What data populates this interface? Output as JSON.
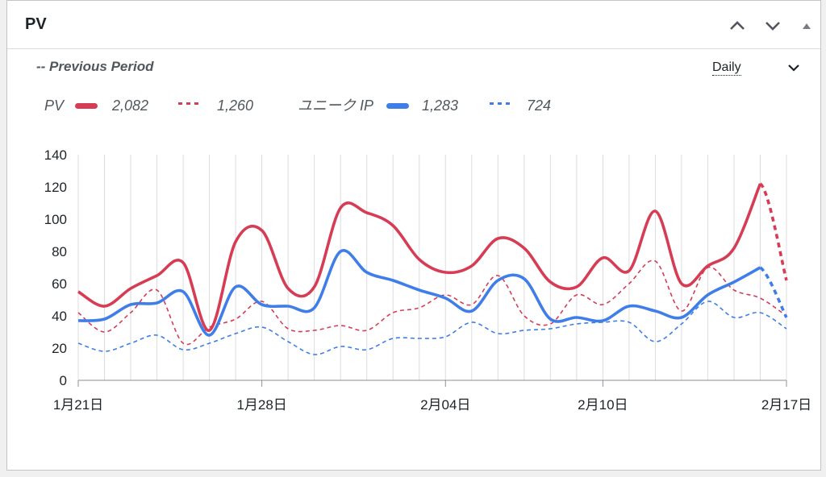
{
  "widget": {
    "title": "PV",
    "previous_period_label": "-- Previous Period",
    "range_label": "Daily"
  },
  "icons": {
    "move_up": "chevron-up-icon",
    "move_down": "chevron-down-icon",
    "toggle": "triangle-up-icon",
    "range_dropdown": "chevron-down-icon"
  },
  "legend": {
    "pv_label": "PV",
    "pv_current": "2,082",
    "pv_previous": "1,260",
    "uip_label": "ユニーク IP",
    "uip_current": "1,283",
    "uip_previous": "724"
  },
  "colors": {
    "pv": "#d63d55",
    "uip": "#3f7ee8",
    "grid": "#dcdcde",
    "axis_text": "#1d2327"
  },
  "chart_data": {
    "type": "line",
    "x": [
      "1月21日",
      "1月22日",
      "1月23日",
      "1月24日",
      "1月25日",
      "1月26日",
      "1月27日",
      "1月28日",
      "1月29日",
      "1月30日",
      "1月31日",
      "2月01日",
      "2月02日",
      "2月03日",
      "2月04日",
      "2月05日",
      "2月06日",
      "2月07日",
      "2月08日",
      "2月09日",
      "2月10日",
      "2月11日",
      "2月12日",
      "2月13日",
      "2月14日",
      "2月15日",
      "2月16日",
      "2月17日"
    ],
    "x_tick_labels": [
      "1月21日",
      "1月28日",
      "2月04日",
      "2月10日",
      "2月17日"
    ],
    "x_tick_indices": [
      0,
      7,
      14,
      20,
      27
    ],
    "ylim": [
      0,
      140
    ],
    "yticks": [
      0,
      20,
      40,
      60,
      80,
      100,
      120,
      140
    ],
    "grid": true,
    "series": [
      {
        "name": "PV",
        "style": "solid",
        "values": [
          55,
          46,
          57,
          65,
          73,
          31,
          86,
          93,
          57,
          58,
          107,
          104,
          96,
          75,
          67,
          71,
          88,
          82,
          61,
          58,
          76,
          68,
          105,
          60,
          71,
          82,
          122,
          62
        ]
      },
      {
        "name": "PV",
        "style": "dashed",
        "values": [
          42,
          30,
          42,
          56,
          23,
          33,
          38,
          49,
          32,
          31,
          34,
          31,
          42,
          45,
          53,
          47,
          65,
          40,
          35,
          53,
          47,
          60,
          74,
          43,
          70,
          56,
          51,
          40
        ]
      },
      {
        "name": "ユニーク IP",
        "style": "solid",
        "values": [
          37,
          38,
          47,
          48,
          55,
          28,
          58,
          47,
          46,
          45,
          80,
          67,
          62,
          56,
          51,
          43,
          62,
          63,
          38,
          39,
          37,
          46,
          43,
          39,
          53,
          61,
          70,
          39
        ]
      },
      {
        "name": "ユニーク IP",
        "style": "dashed",
        "values": [
          23,
          18,
          23,
          28,
          19,
          23,
          29,
          33,
          24,
          16,
          21,
          19,
          26,
          26,
          27,
          36,
          29,
          31,
          32,
          35,
          36,
          36,
          24,
          35,
          49,
          39,
          42,
          32
        ]
      }
    ]
  }
}
